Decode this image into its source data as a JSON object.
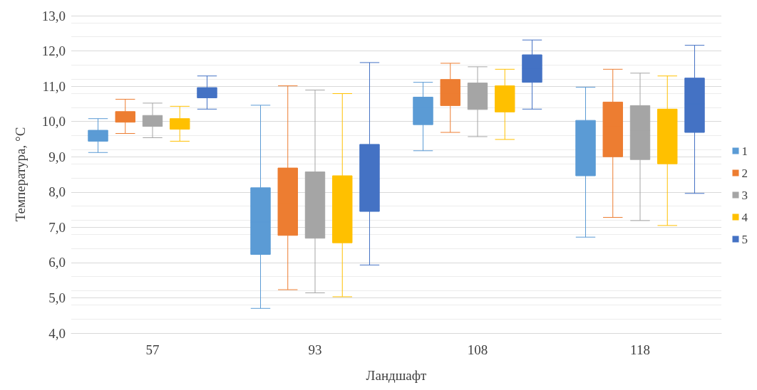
{
  "chart_data": {
    "type": "box",
    "xlabel": "Ландшафт",
    "ylabel": "Температура, °C",
    "categories": [
      "57",
      "93",
      "108",
      "118"
    ],
    "ylim": [
      4,
      13
    ],
    "yticks": [
      {
        "value": 4,
        "label": "4,0"
      },
      {
        "value": 5,
        "label": "5,0"
      },
      {
        "value": 6,
        "label": "6,0"
      },
      {
        "value": 7,
        "label": "7,0"
      },
      {
        "value": 8,
        "label": "8,0"
      },
      {
        "value": 9,
        "label": "9,0"
      },
      {
        "value": 10,
        "label": "10,0"
      },
      {
        "value": 11,
        "label": "11,0"
      },
      {
        "value": 12,
        "label": "12,0"
      },
      {
        "value": 13,
        "label": "13,0"
      }
    ],
    "grid": "y",
    "legend": "right",
    "series": [
      {
        "name": "1",
        "color": "#5b9bd5",
        "boxes": [
          {
            "low": 9.12,
            "q1": 9.44,
            "median": 9.6,
            "q3": 9.75,
            "high": 10.08
          },
          {
            "low": 4.7,
            "q1": 6.23,
            "median": 7.14,
            "q3": 8.12,
            "high": 10.46
          },
          {
            "low": 9.17,
            "q1": 9.91,
            "median": 10.4,
            "q3": 10.69,
            "high": 11.11
          },
          {
            "low": 6.72,
            "q1": 8.46,
            "median": 9.3,
            "q3": 10.03,
            "high": 10.97
          }
        ]
      },
      {
        "name": "2",
        "color": "#ed7d31",
        "boxes": [
          {
            "low": 9.66,
            "q1": 9.98,
            "median": 10.15,
            "q3": 10.28,
            "high": 10.63
          },
          {
            "low": 5.23,
            "q1": 6.77,
            "median": 7.68,
            "q3": 8.68,
            "high": 11.01
          },
          {
            "low": 9.69,
            "q1": 10.45,
            "median": 10.8,
            "q3": 11.19,
            "high": 11.65
          },
          {
            "low": 7.28,
            "q1": 9.0,
            "median": 9.85,
            "q3": 10.55,
            "high": 11.48
          }
        ]
      },
      {
        "name": "3",
        "color": "#a5a5a5",
        "boxes": [
          {
            "low": 9.54,
            "q1": 9.86,
            "median": 10.0,
            "q3": 10.17,
            "high": 10.52
          },
          {
            "low": 5.14,
            "q1": 6.69,
            "median": 7.57,
            "q3": 8.57,
            "high": 10.89
          },
          {
            "low": 9.57,
            "q1": 10.34,
            "median": 10.75,
            "q3": 11.09,
            "high": 11.55
          },
          {
            "low": 7.19,
            "q1": 8.92,
            "median": 9.75,
            "q3": 10.45,
            "high": 11.37
          }
        ]
      },
      {
        "name": "4",
        "color": "#ffc000",
        "boxes": [
          {
            "low": 9.44,
            "q1": 9.78,
            "median": 9.92,
            "q3": 10.08,
            "high": 10.43
          },
          {
            "low": 5.03,
            "q1": 6.56,
            "median": 7.45,
            "q3": 8.46,
            "high": 10.79
          },
          {
            "low": 9.49,
            "q1": 10.27,
            "median": 10.65,
            "q3": 11.01,
            "high": 11.48
          },
          {
            "low": 7.05,
            "q1": 8.8,
            "median": 9.6,
            "q3": 10.35,
            "high": 11.29
          }
        ]
      },
      {
        "name": "5",
        "color": "#4472c4",
        "boxes": [
          {
            "low": 10.35,
            "q1": 10.67,
            "median": 10.8,
            "q3": 10.96,
            "high": 11.29
          },
          {
            "low": 5.93,
            "q1": 7.45,
            "median": 8.36,
            "q3": 9.35,
            "high": 11.67
          },
          {
            "low": 10.35,
            "q1": 11.11,
            "median": 11.5,
            "q3": 11.89,
            "high": 12.31
          },
          {
            "low": 7.96,
            "q1": 9.69,
            "median": 10.5,
            "q3": 11.23,
            "high": 12.16
          }
        ]
      }
    ]
  }
}
